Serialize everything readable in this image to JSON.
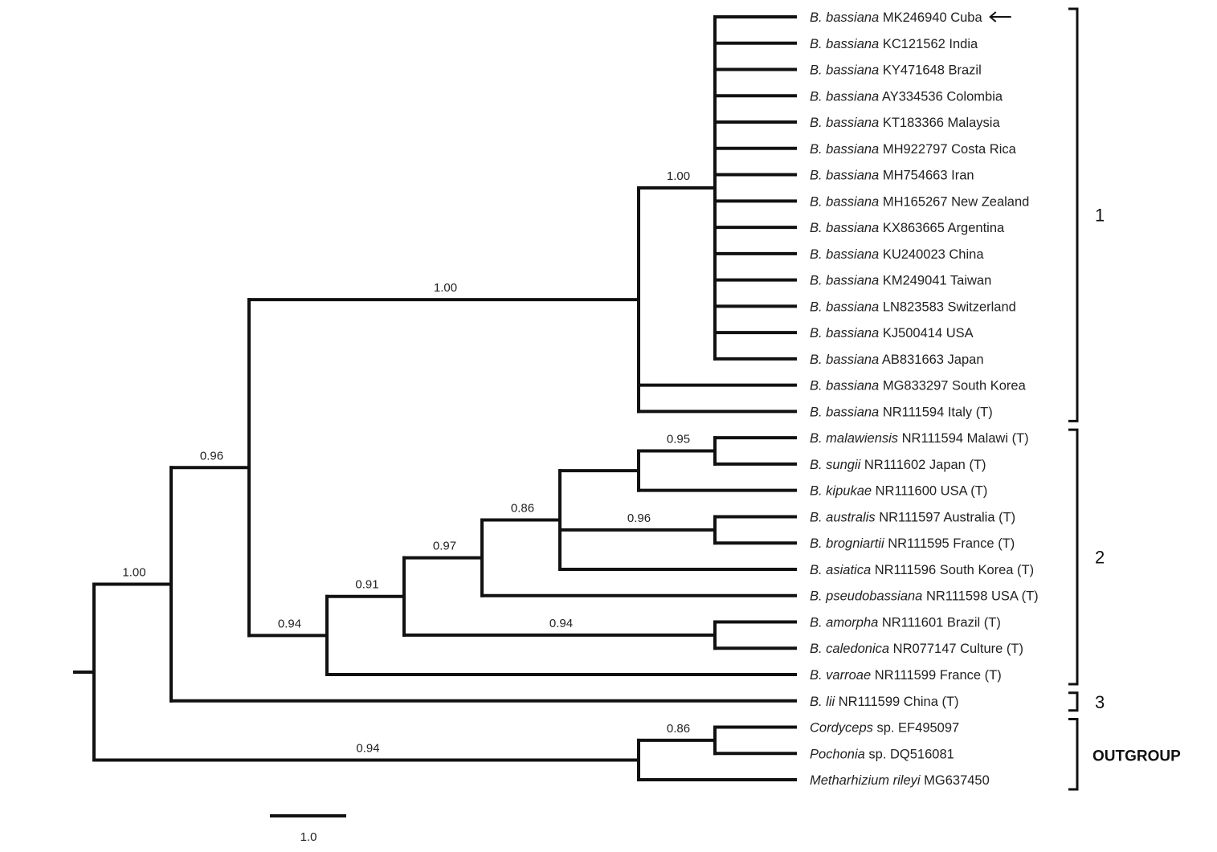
{
  "taxa": [
    {
      "italic": "B. bassiana",
      "rest": "MK246940 Cuba"
    },
    {
      "italic": "B. bassiana",
      "rest": "KC121562 India"
    },
    {
      "italic": "B. bassiana",
      "rest": "KY471648 Brazil"
    },
    {
      "italic": "B. bassiana",
      "rest": "AY334536 Colombia"
    },
    {
      "italic": "B. bassiana",
      "rest": "KT183366 Malaysia"
    },
    {
      "italic": "B. bassiana",
      "rest": "MH922797 Costa Rica"
    },
    {
      "italic": "B. bassiana",
      "rest": "MH754663 Iran"
    },
    {
      "italic": "B. bassiana",
      "rest": "MH165267 New Zealand"
    },
    {
      "italic": "B. bassiana",
      "rest": "KX863665 Argentina"
    },
    {
      "italic": "B. bassiana",
      "rest": "KU240023 China"
    },
    {
      "italic": "B. bassiana",
      "rest": "KM249041 Taiwan"
    },
    {
      "italic": "B. bassiana",
      "rest": "LN823583 Switzerland"
    },
    {
      "italic": "B. bassiana",
      "rest": "KJ500414 USA"
    },
    {
      "italic": "B. bassiana",
      "rest": "AB831663 Japan"
    },
    {
      "italic": "B. bassiana",
      "rest": "MG833297 South Korea"
    },
    {
      "italic": "B. bassiana",
      "rest": "NR111594 Italy (T)"
    },
    {
      "italic": "B. malawiensis",
      "rest": "NR111594 Malawi (T)"
    },
    {
      "italic": "B. sungii",
      "rest": "NR111602 Japan (T)"
    },
    {
      "italic": "B. kipukae",
      "rest": "NR111600 USA (T)"
    },
    {
      "italic": "B. australis",
      "rest": "NR111597 Australia (T)"
    },
    {
      "italic": "B. brogniartii",
      "rest": "NR111595 France (T)"
    },
    {
      "italic": "B. asiatica",
      "rest": "NR111596 South Korea (T)"
    },
    {
      "italic": "B. pseudobassiana",
      "rest": "NR111598 USA (T)"
    },
    {
      "italic": "B. amorpha",
      "rest": "NR111601 Brazil (T)"
    },
    {
      "italic": "B. caledonica",
      "rest": "NR077147 Culture (T)"
    },
    {
      "italic": "B. varroae",
      "rest": "NR111599 France (T)"
    },
    {
      "italic": "B. lii",
      "rest": "NR111599 China (T)"
    },
    {
      "italic": "Cordyceps",
      "rest": "sp. EF495097"
    },
    {
      "italic": "Pochonia",
      "rest": "sp. DQ516081"
    },
    {
      "italic": "Metharhizium rileyi",
      "rest": "MG637450"
    }
  ],
  "highlighted_taxon_index": 0,
  "tree": {
    "id": "root",
    "support": null,
    "children": [
      {
        "id": "n213",
        "support": "1.00",
        "children": [
          {
            "id": "n310",
            "support": "0.96",
            "children": [
              {
                "id": "n795a",
                "support": "1.00",
                "children": [
                  {
                    "id": "n890a",
                    "support": "1.00",
                    "children": [
                      0,
                      1,
                      2,
                      3,
                      4,
                      5,
                      6,
                      7,
                      8,
                      9,
                      10,
                      11,
                      12,
                      13
                    ]
                  },
                  14,
                  15
                ]
              },
              {
                "id": "n407",
                "support": "0.94",
                "children": [
                  {
                    "id": "n503",
                    "support": "0.91",
                    "children": [
                      {
                        "id": "n600",
                        "support": "0.97",
                        "children": [
                          {
                            "id": "n697",
                            "support": "0.86",
                            "children": [
                              {
                                "id": "n795b",
                                "support": null,
                                "children": [
                                  {
                                    "id": "n890b",
                                    "support": "0.95",
                                    "children": [
                                      16,
                                      17
                                    ]
                                  },
                                  18
                                ]
                              },
                              {
                                "id": "n890c",
                                "support": "0.96",
                                "children": [
                                  19,
                                  20
                                ]
                              },
                              21
                            ]
                          },
                          22
                        ]
                      },
                      {
                        "id": "n890d",
                        "support": "0.94",
                        "children": [
                          23,
                          24
                        ]
                      }
                    ]
                  },
                  25
                ]
              }
            ]
          },
          26
        ]
      },
      {
        "id": "n795c",
        "support": "0.94",
        "children": [
          {
            "id": "n890e",
            "support": "0.86",
            "children": [
              27,
              28
            ]
          },
          29
        ]
      }
    ]
  },
  "groups": [
    {
      "label": "1",
      "from": 0,
      "to": 15
    },
    {
      "label": "2",
      "from": 16,
      "to": 25
    },
    {
      "label": "3",
      "from": 26,
      "to": 26
    },
    {
      "label": "OUTGROUP",
      "from": 27,
      "to": 29
    }
  ],
  "scale_bar": {
    "label": "1.0"
  }
}
